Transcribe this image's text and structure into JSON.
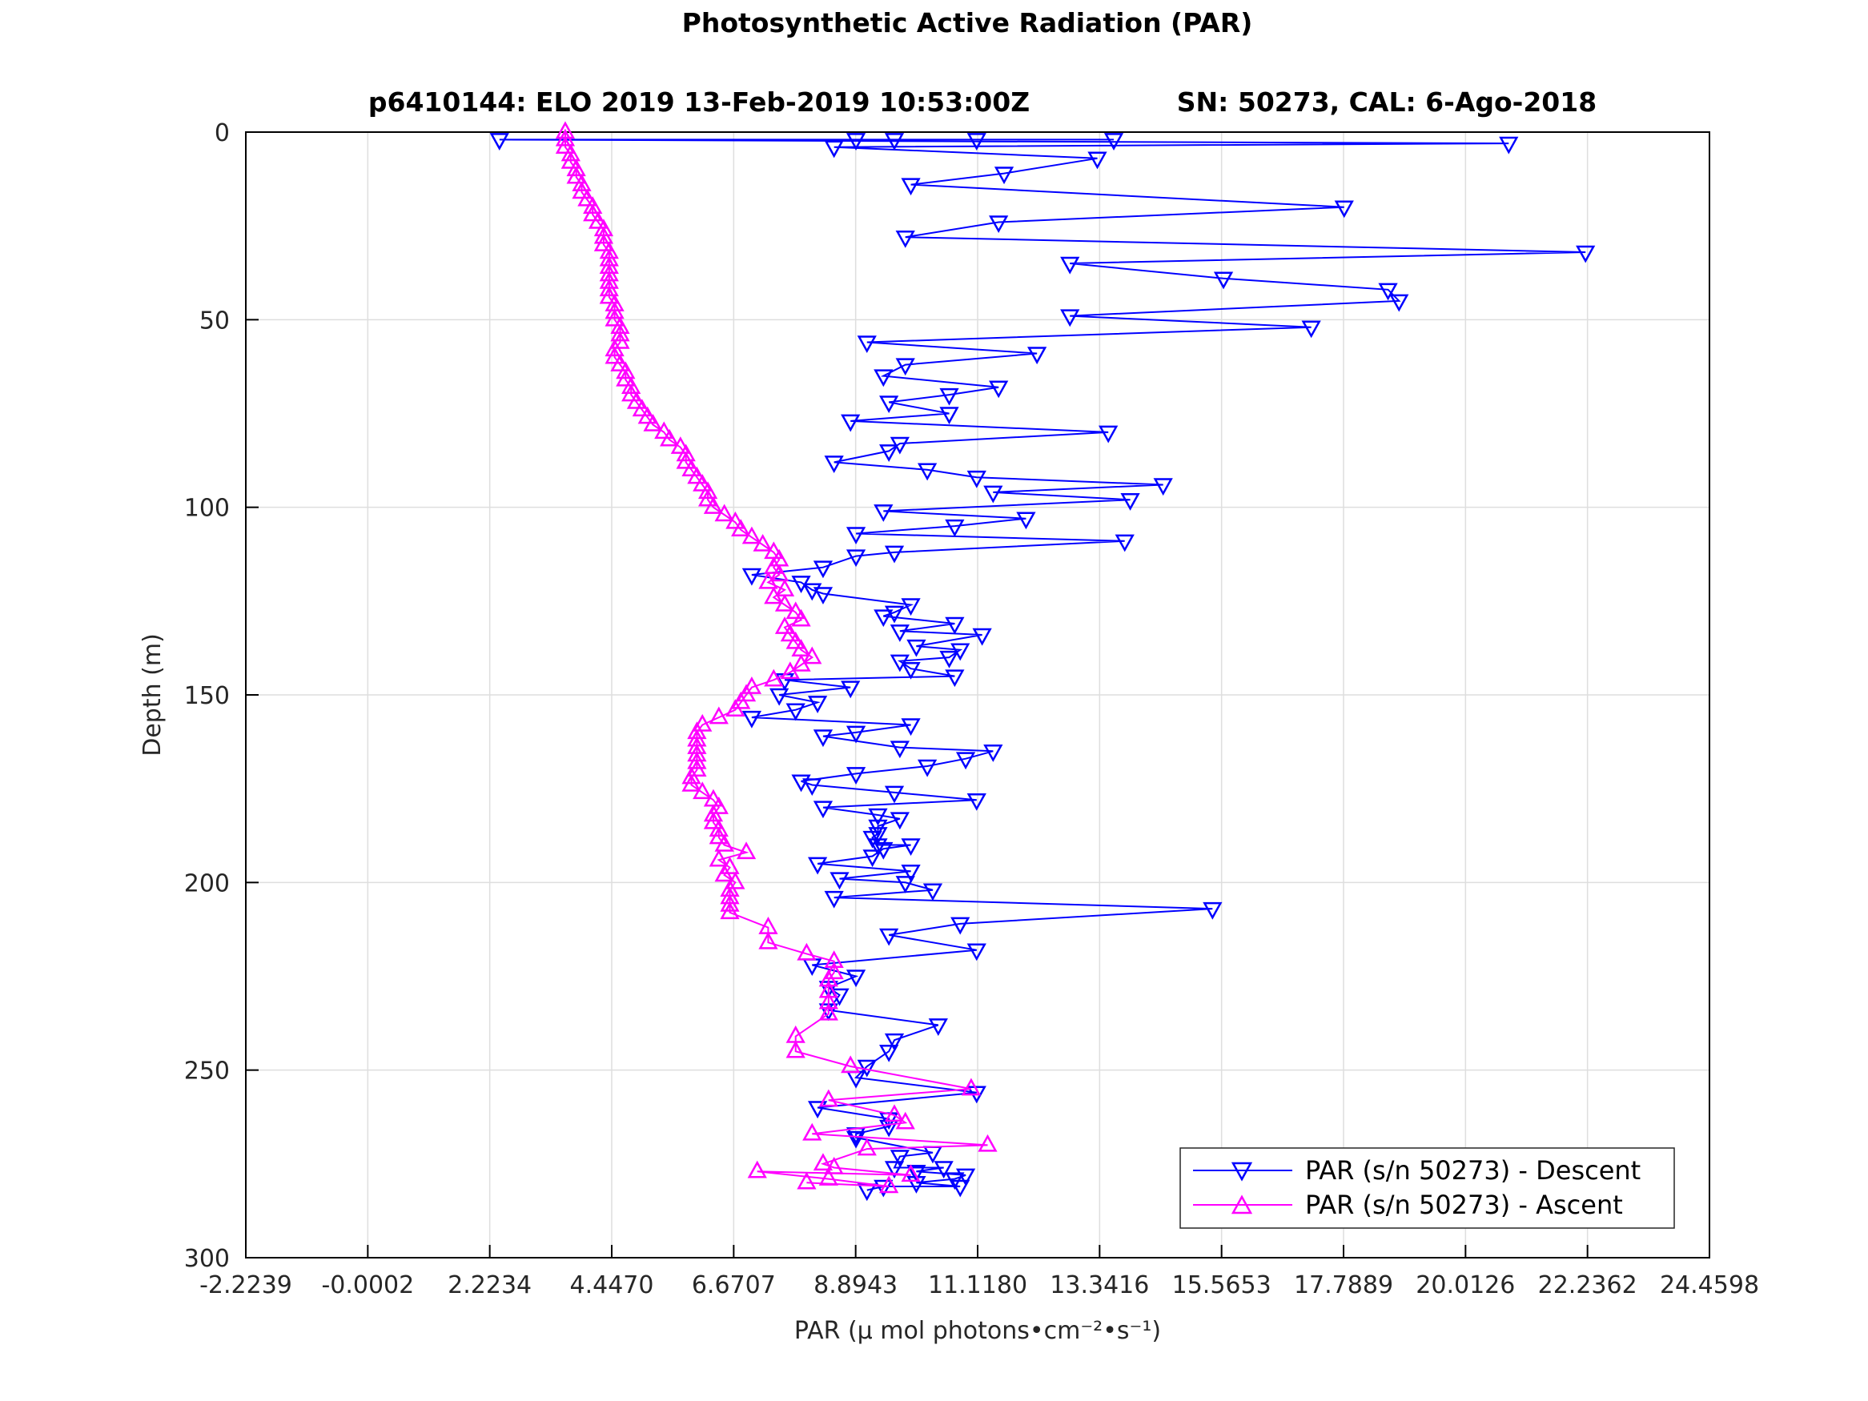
{
  "chart_data": {
    "type": "line",
    "title": "Photosynthetic Active Radiation (PAR)",
    "subtitle_left": "p6410144: ELO 2019 13-Feb-2019 10:53:00Z",
    "subtitle_right": "SN: 50273, CAL: 6-Ago-2018",
    "xlabel": "PAR (μ mol photons•cm⁻²•s⁻¹)",
    "ylabel": "Depth (m)",
    "xlim": [
      -2.2239,
      24.4598
    ],
    "ylim": [
      0,
      300
    ],
    "y_reversed": true,
    "grid": true,
    "legend_position": "bottom-right",
    "xticks": [
      -2.2239,
      -0.0002,
      2.2234,
      4.447,
      6.6707,
      8.8943,
      11.118,
      13.3416,
      15.5653,
      17.7889,
      20.0126,
      22.2362,
      24.4598
    ],
    "xtick_labels": [
      "-2.2239",
      "-0.0002",
      "2.2234",
      "4.4470",
      "6.6707",
      "8.8943",
      "11.1180",
      "13.3416",
      "15.5653",
      "17.7889",
      "20.0126",
      "22.2362",
      "24.4598"
    ],
    "yticks": [
      0,
      50,
      100,
      150,
      200,
      250,
      300
    ],
    "ytick_labels": [
      "0",
      "50",
      "100",
      "150",
      "200",
      "250",
      "300"
    ],
    "series": [
      {
        "name": "PAR (s/n 50273) - Descent",
        "color": "#0000ff",
        "marker": "triangle-down",
        "points": [
          [
            11.1,
            2
          ],
          [
            13.6,
            2
          ],
          [
            9.6,
            2
          ],
          [
            8.9,
            2
          ],
          [
            2.4,
            2
          ],
          [
            20.8,
            3
          ],
          [
            8.5,
            4
          ],
          [
            13.3,
            7
          ],
          [
            11.6,
            11
          ],
          [
            9.9,
            14
          ],
          [
            17.8,
            20
          ],
          [
            11.5,
            24
          ],
          [
            9.8,
            28
          ],
          [
            22.2,
            32
          ],
          [
            12.8,
            35
          ],
          [
            15.6,
            39
          ],
          [
            18.6,
            42
          ],
          [
            18.8,
            45
          ],
          [
            12.8,
            49
          ],
          [
            17.2,
            52
          ],
          [
            9.1,
            56
          ],
          [
            12.2,
            59
          ],
          [
            9.8,
            62
          ],
          [
            9.4,
            65
          ],
          [
            11.5,
            68
          ],
          [
            10.6,
            70
          ],
          [
            9.5,
            72
          ],
          [
            10.6,
            75
          ],
          [
            8.8,
            77
          ],
          [
            13.5,
            80
          ],
          [
            9.7,
            83
          ],
          [
            9.5,
            85
          ],
          [
            8.5,
            88
          ],
          [
            10.2,
            90
          ],
          [
            11.1,
            92
          ],
          [
            14.5,
            94
          ],
          [
            11.4,
            96
          ],
          [
            13.9,
            98
          ],
          [
            9.4,
            101
          ],
          [
            12.0,
            103
          ],
          [
            10.7,
            105
          ],
          [
            8.9,
            107
          ],
          [
            13.8,
            109
          ],
          [
            9.6,
            112
          ],
          [
            8.9,
            113
          ],
          [
            8.3,
            116
          ],
          [
            7.0,
            118
          ],
          [
            7.9,
            120
          ],
          [
            8.1,
            122
          ],
          [
            8.3,
            123
          ],
          [
            9.9,
            126
          ],
          [
            9.6,
            128
          ],
          [
            9.4,
            129
          ],
          [
            10.7,
            131
          ],
          [
            9.7,
            133
          ],
          [
            11.2,
            134
          ],
          [
            10.0,
            137
          ],
          [
            10.8,
            138
          ],
          [
            10.6,
            140
          ],
          [
            9.7,
            141
          ],
          [
            9.9,
            143
          ],
          [
            10.7,
            145
          ],
          [
            7.6,
            146
          ],
          [
            8.8,
            148
          ],
          [
            7.5,
            150
          ],
          [
            8.2,
            152
          ],
          [
            7.8,
            154
          ],
          [
            7.0,
            156
          ],
          [
            9.9,
            158
          ],
          [
            8.9,
            160
          ],
          [
            8.3,
            161
          ],
          [
            9.7,
            164
          ],
          [
            11.4,
            165
          ],
          [
            10.9,
            167
          ],
          [
            10.2,
            169
          ],
          [
            8.9,
            171
          ],
          [
            7.9,
            173
          ],
          [
            8.1,
            174
          ],
          [
            9.6,
            176
          ],
          [
            11.1,
            178
          ],
          [
            8.3,
            180
          ],
          [
            9.3,
            182
          ],
          [
            9.7,
            183
          ],
          [
            9.3,
            185
          ],
          [
            9.3,
            187
          ],
          [
            9.2,
            188
          ],
          [
            9.3,
            190
          ],
          [
            9.9,
            190
          ],
          [
            9.4,
            191
          ],
          [
            9.2,
            193
          ],
          [
            8.2,
            195
          ],
          [
            9.9,
            197
          ],
          [
            8.6,
            199
          ],
          [
            9.8,
            200
          ],
          [
            10.3,
            202
          ],
          [
            8.5,
            204
          ],
          [
            15.4,
            207
          ],
          [
            10.8,
            211
          ],
          [
            9.5,
            214
          ],
          [
            11.1,
            218
          ],
          [
            8.1,
            222
          ],
          [
            8.9,
            225
          ],
          [
            8.4,
            228
          ],
          [
            8.6,
            230
          ],
          [
            8.4,
            234
          ],
          [
            10.4,
            238
          ],
          [
            9.6,
            242
          ],
          [
            9.5,
            245
          ],
          [
            9.1,
            249
          ],
          [
            8.9,
            252
          ],
          [
            11.1,
            256
          ],
          [
            8.2,
            260
          ],
          [
            9.5,
            263
          ],
          [
            9.5,
            265
          ],
          [
            8.9,
            267
          ],
          [
            8.9,
            268
          ],
          [
            10.3,
            272
          ],
          [
            9.7,
            273
          ],
          [
            9.6,
            276
          ],
          [
            10.5,
            276
          ],
          [
            10.0,
            277
          ],
          [
            10.9,
            278
          ],
          [
            10.7,
            279
          ],
          [
            10.0,
            280
          ],
          [
            10.8,
            281
          ],
          [
            9.4,
            281
          ],
          [
            9.1,
            282
          ]
        ]
      },
      {
        "name": "PAR (s/n 50273) - Ascent",
        "color": "#ff00ff",
        "marker": "triangle-up",
        "points": [
          [
            3.6,
            0
          ],
          [
            3.6,
            2
          ],
          [
            3.6,
            4
          ],
          [
            3.7,
            6
          ],
          [
            3.7,
            8
          ],
          [
            3.8,
            10
          ],
          [
            3.8,
            12
          ],
          [
            3.9,
            14
          ],
          [
            3.9,
            16
          ],
          [
            4.0,
            18
          ],
          [
            4.1,
            20
          ],
          [
            4.1,
            22
          ],
          [
            4.2,
            24
          ],
          [
            4.3,
            26
          ],
          [
            4.3,
            28
          ],
          [
            4.3,
            30
          ],
          [
            4.4,
            32
          ],
          [
            4.4,
            34
          ],
          [
            4.4,
            36
          ],
          [
            4.4,
            38
          ],
          [
            4.4,
            40
          ],
          [
            4.4,
            42
          ],
          [
            4.4,
            44
          ],
          [
            4.5,
            46
          ],
          [
            4.5,
            48
          ],
          [
            4.5,
            50
          ],
          [
            4.6,
            52
          ],
          [
            4.6,
            54
          ],
          [
            4.6,
            56
          ],
          [
            4.5,
            58
          ],
          [
            4.5,
            60
          ],
          [
            4.6,
            62
          ],
          [
            4.7,
            64
          ],
          [
            4.7,
            66
          ],
          [
            4.8,
            68
          ],
          [
            4.8,
            70
          ],
          [
            4.9,
            72
          ],
          [
            5.0,
            74
          ],
          [
            5.1,
            76
          ],
          [
            5.2,
            78
          ],
          [
            5.4,
            80
          ],
          [
            5.5,
            82
          ],
          [
            5.7,
            84
          ],
          [
            5.8,
            86
          ],
          [
            5.8,
            88
          ],
          [
            5.9,
            90
          ],
          [
            6.0,
            92
          ],
          [
            6.1,
            94
          ],
          [
            6.2,
            96
          ],
          [
            6.2,
            98
          ],
          [
            6.3,
            100
          ],
          [
            6.5,
            102
          ],
          [
            6.7,
            104
          ],
          [
            6.8,
            106
          ],
          [
            7.0,
            108
          ],
          [
            7.2,
            110
          ],
          [
            7.4,
            112
          ],
          [
            7.5,
            114
          ],
          [
            7.4,
            116
          ],
          [
            7.5,
            118
          ],
          [
            7.3,
            120
          ],
          [
            7.6,
            122
          ],
          [
            7.4,
            124
          ],
          [
            7.6,
            126
          ],
          [
            7.8,
            128
          ],
          [
            7.9,
            130
          ],
          [
            7.6,
            132
          ],
          [
            7.7,
            134
          ],
          [
            7.8,
            136
          ],
          [
            7.9,
            138
          ],
          [
            8.1,
            140
          ],
          [
            7.9,
            142
          ],
          [
            7.7,
            144
          ],
          [
            7.4,
            146
          ],
          [
            7.0,
            148
          ],
          [
            6.9,
            150
          ],
          [
            6.8,
            152
          ],
          [
            6.7,
            154
          ],
          [
            6.4,
            156
          ],
          [
            6.1,
            158
          ],
          [
            6.0,
            160
          ],
          [
            6.0,
            162
          ],
          [
            6.0,
            164
          ],
          [
            6.0,
            166
          ],
          [
            6.0,
            168
          ],
          [
            6.0,
            170
          ],
          [
            5.9,
            172
          ],
          [
            5.9,
            174
          ],
          [
            6.1,
            176
          ],
          [
            6.3,
            178
          ],
          [
            6.4,
            180
          ],
          [
            6.3,
            182
          ],
          [
            6.3,
            184
          ],
          [
            6.4,
            186
          ],
          [
            6.4,
            188
          ],
          [
            6.5,
            190
          ],
          [
            6.9,
            192
          ],
          [
            6.4,
            194
          ],
          [
            6.6,
            196
          ],
          [
            6.5,
            198
          ],
          [
            6.7,
            200
          ],
          [
            6.6,
            202
          ],
          [
            6.6,
            204
          ],
          [
            6.6,
            206
          ],
          [
            6.6,
            208
          ],
          [
            7.3,
            212
          ],
          [
            7.3,
            216
          ],
          [
            8.0,
            219
          ],
          [
            8.5,
            221
          ],
          [
            8.5,
            224
          ],
          [
            8.4,
            226
          ],
          [
            8.4,
            229
          ],
          [
            8.4,
            232
          ],
          [
            8.4,
            235
          ],
          [
            7.8,
            241
          ],
          [
            7.8,
            245
          ],
          [
            8.8,
            249
          ],
          [
            11.0,
            255
          ],
          [
            8.4,
            258
          ],
          [
            9.6,
            262
          ],
          [
            9.8,
            264
          ],
          [
            8.1,
            267
          ],
          [
            11.3,
            270
          ],
          [
            9.1,
            271
          ],
          [
            8.3,
            275
          ],
          [
            8.5,
            276
          ],
          [
            9.9,
            278
          ],
          [
            7.1,
            277
          ],
          [
            8.4,
            279
          ],
          [
            9.5,
            281
          ],
          [
            8.0,
            280
          ]
        ]
      }
    ]
  }
}
